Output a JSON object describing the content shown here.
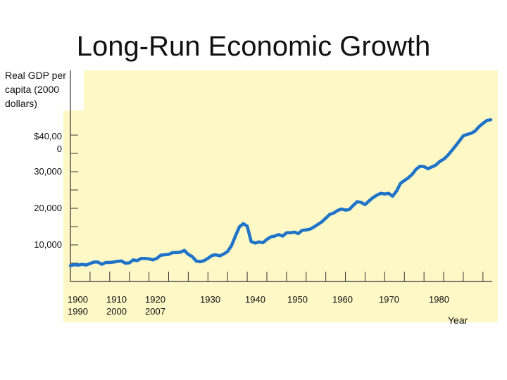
{
  "chart_data": {
    "type": "line",
    "title": "Long-Run Economic Growth",
    "ylabel": "Real GDP per\ncapita (2000\ndollars)",
    "xlabel": "Year",
    "yticks": [
      {
        "value": 40000,
        "label": "$40,00\n0"
      },
      {
        "value": 30000,
        "label": "30,000"
      },
      {
        "value": 20000,
        "label": "20,000"
      },
      {
        "value": 10000,
        "label": "10,000"
      }
    ],
    "xticks": [
      {
        "value": 1900,
        "label": "1900\n1990"
      },
      {
        "value": 1910,
        "label": "1910\n2000"
      },
      {
        "value": 1920,
        "label": "1920\n2007"
      },
      {
        "value": 1930,
        "label": "1930"
      },
      {
        "value": 1940,
        "label": "1940"
      },
      {
        "value": 1950,
        "label": "1950"
      },
      {
        "value": 1960,
        "label": "1960"
      },
      {
        "value": 1970,
        "label": "1970"
      },
      {
        "value": 1980,
        "label": "1980"
      }
    ],
    "ylim": [
      0,
      50000
    ],
    "xlim": [
      1900,
      2007
    ],
    "grid": false,
    "line_color": "#1f73c8",
    "series": [
      {
        "x": [
          1900,
          1901,
          1902,
          1903,
          1904,
          1905,
          1906,
          1907,
          1908,
          1909,
          1910,
          1911,
          1912,
          1913,
          1914,
          1915,
          1916,
          1917,
          1918,
          1919,
          1920,
          1921,
          1922,
          1923,
          1924,
          1925,
          1926,
          1927,
          1928,
          1929,
          1930,
          1931,
          1932,
          1933,
          1934,
          1935,
          1936,
          1937,
          1938,
          1939,
          1940,
          1941,
          1942,
          1943,
          1944,
          1945,
          1946,
          1947,
          1948,
          1949,
          1950,
          1951,
          1952,
          1953,
          1954,
          1955,
          1956,
          1957,
          1958,
          1959,
          1960,
          1961,
          1962,
          1963,
          1964,
          1965,
          1966,
          1967,
          1968,
          1969,
          1970,
          1971,
          1972,
          1973,
          1974,
          1975,
          1976,
          1977,
          1978,
          1979,
          1980,
          1981,
          1982,
          1983,
          1984,
          1985,
          1986,
          1987,
          1988,
          1989,
          1990,
          1991,
          1992,
          1993,
          1994,
          1995,
          1996,
          1997,
          1998,
          1999,
          2000,
          2001,
          2002,
          2003,
          2004,
          2005,
          2006,
          2007
        ],
        "values": [
          4300,
          4600,
          4500,
          4700,
          4500,
          4900,
          5300,
          5300,
          4700,
          5200,
          5200,
          5300,
          5500,
          5600,
          5000,
          5100,
          5900,
          5700,
          6300,
          6300,
          6200,
          5900,
          6300,
          7200,
          7300,
          7400,
          7900,
          7900,
          8000,
          8500,
          7400,
          6800,
          5600,
          5400,
          5700,
          6300,
          7100,
          7300,
          7000,
          7500,
          8200,
          9800,
          12400,
          14900,
          15800,
          15100,
          10900,
          10500,
          10800,
          10600,
          11500,
          12200,
          12400,
          12800,
          12400,
          13300,
          13300,
          13500,
          13100,
          14000,
          14100,
          14300,
          14900,
          15600,
          16300,
          17300,
          18300,
          18700,
          19400,
          19800,
          19500,
          19700,
          20800,
          21800,
          21600,
          21000,
          22000,
          22900,
          23600,
          24100,
          23900,
          24100,
          23300,
          24700,
          26800,
          27600,
          28300,
          29300,
          30700,
          31500,
          31400,
          30800,
          31300,
          31800,
          32800,
          33400,
          34400,
          35700,
          37000,
          38400,
          39800,
          40200,
          40500,
          41100,
          42300,
          43200,
          44000,
          44200
        ]
      }
    ]
  }
}
